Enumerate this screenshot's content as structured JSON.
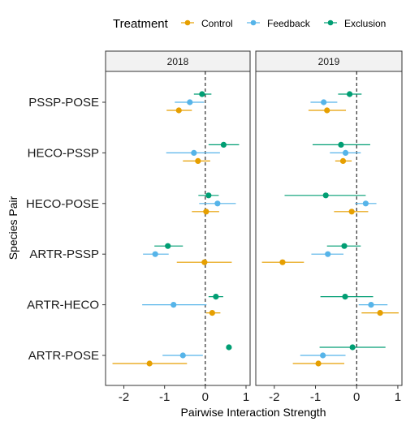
{
  "chart_data": {
    "type": "scatter",
    "xlabel": "Pairwise Interaction Strength",
    "ylabel": "Species Pair",
    "xlim": [
      -2.45,
      1.1
    ],
    "xticks": [
      -2,
      -1,
      0,
      1
    ],
    "xtick_labels": [
      "-2",
      "-1",
      "0",
      "1"
    ],
    "categories": [
      "PSSP-POSE",
      "HECO-PSSP",
      "HECO-POSE",
      "ARTR-PSSP",
      "ARTR-HECO",
      "ARTR-POSE"
    ],
    "legend": {
      "title": "Treatment",
      "position": "top",
      "entries": [
        "Control",
        "Feedback",
        "Exclusion"
      ]
    },
    "reference_line": {
      "x": 0,
      "style": "dashed"
    },
    "colors": {
      "Control": "#E69F00",
      "Feedback": "#56B4E9",
      "Exclusion": "#009E73"
    },
    "facets": [
      {
        "label": "2018",
        "series": [
          {
            "name": "Control",
            "points": [
              {
                "pair": "PSSP-POSE",
                "estimate": -0.65,
                "low": -0.95,
                "high": -0.33
              },
              {
                "pair": "HECO-PSSP",
                "estimate": -0.18,
                "low": -0.55,
                "high": 0.12
              },
              {
                "pair": "HECO-POSE",
                "estimate": 0.02,
                "low": -0.33,
                "high": 0.34
              },
              {
                "pair": "ARTR-PSSP",
                "estimate": -0.02,
                "low": -0.7,
                "high": 0.65
              },
              {
                "pair": "ARTR-HECO",
                "estimate": 0.17,
                "low": 0.02,
                "high": 0.37
              },
              {
                "pair": "ARTR-POSE",
                "estimate": -1.37,
                "low": -2.28,
                "high": -0.45
              }
            ]
          },
          {
            "name": "Feedback",
            "points": [
              {
                "pair": "PSSP-POSE",
                "estimate": -0.38,
                "low": -0.75,
                "high": -0.03
              },
              {
                "pair": "HECO-PSSP",
                "estimate": -0.28,
                "low": -0.96,
                "high": 0.36
              },
              {
                "pair": "HECO-POSE",
                "estimate": 0.3,
                "low": -0.15,
                "high": 0.75
              },
              {
                "pair": "ARTR-PSSP",
                "estimate": -1.23,
                "low": -1.53,
                "high": -0.9
              },
              {
                "pair": "ARTR-HECO",
                "estimate": -0.78,
                "low": -1.55,
                "high": 0.03
              },
              {
                "pair": "ARTR-POSE",
                "estimate": -0.55,
                "low": -1.05,
                "high": -0.06
              }
            ]
          },
          {
            "name": "Exclusion",
            "points": [
              {
                "pair": "PSSP-POSE",
                "estimate": -0.08,
                "low": -0.28,
                "high": 0.15
              },
              {
                "pair": "HECO-PSSP",
                "estimate": 0.45,
                "low": 0.08,
                "high": 0.83
              },
              {
                "pair": "HECO-POSE",
                "estimate": 0.08,
                "low": -0.17,
                "high": 0.33
              },
              {
                "pair": "ARTR-PSSP",
                "estimate": -0.92,
                "low": -1.25,
                "high": -0.55
              },
              {
                "pair": "ARTR-HECO",
                "estimate": 0.26,
                "low": 0.08,
                "high": 0.44
              },
              {
                "pair": "ARTR-POSE",
                "estimate": 0.58,
                "low": 0.53,
                "high": 0.63
              }
            ]
          }
        ]
      },
      {
        "label": "2019",
        "series": [
          {
            "name": "Control",
            "points": [
              {
                "pair": "PSSP-POSE",
                "estimate": -0.72,
                "low": -1.17,
                "high": -0.26
              },
              {
                "pair": "HECO-PSSP",
                "estimate": -0.33,
                "low": -0.52,
                "high": -0.12
              },
              {
                "pair": "HECO-POSE",
                "estimate": -0.12,
                "low": -0.55,
                "high": 0.28
              },
              {
                "pair": "ARTR-PSSP",
                "estimate": -1.8,
                "low": -2.3,
                "high": -1.28
              },
              {
                "pair": "ARTR-HECO",
                "estimate": 0.57,
                "low": 0.12,
                "high": 1.02
              },
              {
                "pair": "ARTR-POSE",
                "estimate": -0.93,
                "low": -1.55,
                "high": -0.3
              }
            ]
          },
          {
            "name": "Feedback",
            "points": [
              {
                "pair": "PSSP-POSE",
                "estimate": -0.8,
                "low": -1.12,
                "high": -0.47
              },
              {
                "pair": "HECO-PSSP",
                "estimate": -0.27,
                "low": -0.65,
                "high": 0.1
              },
              {
                "pair": "HECO-POSE",
                "estimate": 0.22,
                "low": -0.04,
                "high": 0.48
              },
              {
                "pair": "ARTR-PSSP",
                "estimate": -0.7,
                "low": -1.1,
                "high": -0.32
              },
              {
                "pair": "ARTR-HECO",
                "estimate": 0.35,
                "low": 0.05,
                "high": 0.75
              },
              {
                "pair": "ARTR-POSE",
                "estimate": -0.82,
                "low": -1.37,
                "high": -0.27
              }
            ]
          },
          {
            "name": "Exclusion",
            "points": [
              {
                "pair": "PSSP-POSE",
                "estimate": -0.17,
                "low": -0.45,
                "high": 0.12
              },
              {
                "pair": "HECO-PSSP",
                "estimate": -0.38,
                "low": -1.07,
                "high": 0.33
              },
              {
                "pair": "HECO-POSE",
                "estimate": -0.75,
                "low": -1.75,
                "high": 0.22
              },
              {
                "pair": "ARTR-PSSP",
                "estimate": -0.3,
                "low": -0.72,
                "high": 0.1
              },
              {
                "pair": "ARTR-HECO",
                "estimate": -0.28,
                "low": -0.88,
                "high": 0.4
              },
              {
                "pair": "ARTR-POSE",
                "estimate": -0.1,
                "low": -0.9,
                "high": 0.7
              }
            ]
          }
        ]
      }
    ]
  }
}
